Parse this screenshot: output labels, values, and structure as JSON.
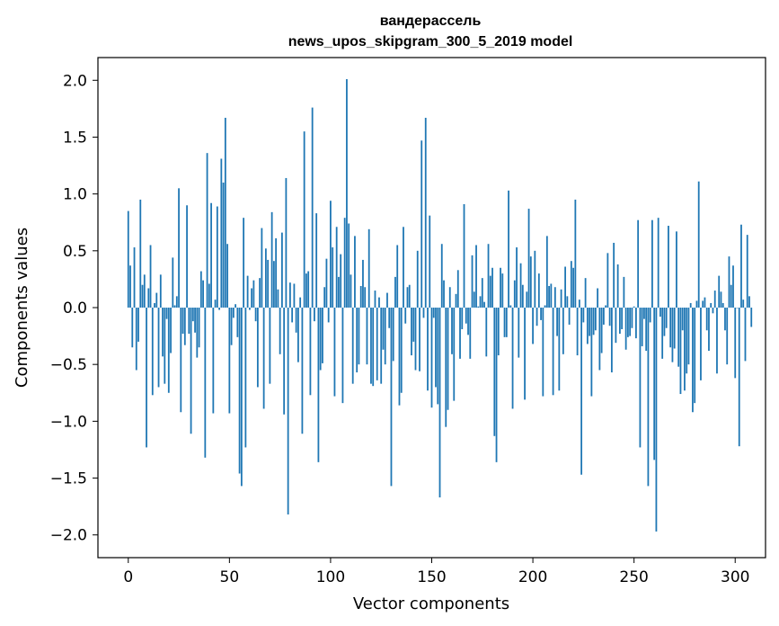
{
  "chart_data": {
    "type": "bar",
    "title_line1": "вандерассель",
    "title_line2": "news_upos_skipgram_300_5_2019 model",
    "xlabel": "Vector components",
    "ylabel": "Components values",
    "xlim": [
      -15,
      315
    ],
    "ylim": [
      -2.2,
      2.2
    ],
    "x_ticks": [
      0,
      50,
      100,
      150,
      200,
      250,
      300
    ],
    "y_ticks": [
      2.0,
      1.5,
      1.0,
      0.5,
      0.0,
      -0.5,
      -1.0,
      -1.5,
      -2.0
    ],
    "x_tick_labels": [
      "0",
      "50",
      "100",
      "150",
      "200",
      "250",
      "300"
    ],
    "y_tick_labels": [
      "2.0",
      "1.5",
      "1.0",
      "0.5",
      "0.0",
      "−0.5",
      "−1.0",
      "−1.5",
      "−2.0"
    ],
    "bar_color": "#1f77b4",
    "values": [
      0.85,
      0.37,
      -0.35,
      0.53,
      -0.55,
      -0.3,
      0.95,
      0.2,
      0.29,
      -1.23,
      0.17,
      0.55,
      -0.77,
      0.04,
      0.13,
      -0.7,
      0.29,
      -0.43,
      -0.67,
      -0.1,
      -0.75,
      -0.4,
      0.44,
      0.02,
      0.1,
      1.05,
      -0.92,
      -0.23,
      -0.33,
      0.9,
      -0.23,
      -1.11,
      -0.12,
      -0.22,
      -0.44,
      -0.35,
      0.32,
      0.24,
      -1.32,
      1.36,
      0.21,
      0.92,
      -0.93,
      0.07,
      0.89,
      -0.02,
      1.31,
      1.1,
      1.67,
      0.56,
      -0.93,
      -0.33,
      -0.09,
      0.03,
      -0.26,
      -1.46,
      -1.57,
      0.79,
      -1.23,
      0.28,
      -0.02,
      0.17,
      0.24,
      -0.12,
      -0.7,
      0.26,
      0.7,
      -0.89,
      0.52,
      0.42,
      -0.67,
      0.84,
      0.41,
      0.61,
      0.16,
      -0.41,
      0.66,
      -0.94,
      1.14,
      -1.82,
      0.22,
      -0.13,
      0.21,
      -0.22,
      -0.48,
      0.09,
      -1.11,
      1.55,
      0.3,
      0.32,
      -0.77,
      1.76,
      -0.12,
      0.83,
      -1.36,
      -0.55,
      -0.49,
      0.18,
      0.43,
      -0.13,
      0.94,
      0.53,
      -0.78,
      0.71,
      0.27,
      0.47,
      -0.84,
      0.79,
      2.01,
      0.74,
      0.29,
      -0.67,
      0.63,
      -0.57,
      -0.5,
      0.19,
      0.42,
      0.18,
      -0.5,
      0.69,
      -0.67,
      -0.69,
      0.15,
      -0.64,
      0.09,
      -0.67,
      -0.37,
      -0.5,
      0.13,
      -0.18,
      -1.57,
      -0.47,
      0.27,
      0.55,
      -0.86,
      -0.75,
      0.71,
      -0.14,
      0.18,
      0.2,
      -0.42,
      -0.3,
      -0.55,
      0.5,
      -0.56,
      1.47,
      -0.09,
      1.67,
      -0.73,
      0.81,
      -0.88,
      -0.09,
      -0.7,
      -0.85,
      -1.67,
      0.56,
      0.24,
      -1.05,
      -0.9,
      0.18,
      -0.41,
      -0.82,
      0.12,
      0.33,
      -0.45,
      -0.19,
      0.91,
      -0.14,
      -0.24,
      -0.45,
      0.46,
      0.14,
      0.55,
      0.01,
      0.1,
      0.26,
      0.05,
      -0.43,
      0.56,
      0.28,
      0.35,
      -1.13,
      -1.36,
      -0.42,
      0.35,
      0.3,
      -0.26,
      -0.26,
      1.03,
      0.02,
      -0.89,
      0.24,
      0.53,
      -0.44,
      0.39,
      0.2,
      -0.81,
      0.14,
      0.87,
      0.45,
      -0.32,
      0.5,
      -0.16,
      0.3,
      -0.11,
      -0.78,
      0.02,
      0.63,
      0.19,
      0.21,
      -0.77,
      0.18,
      -0.25,
      -0.73,
      0.16,
      -0.41,
      0.36,
      0.1,
      -0.15,
      0.41,
      0.35,
      0.95,
      -0.42,
      0.07,
      -1.47,
      -0.13,
      0.26,
      -0.32,
      -0.25,
      -0.78,
      -0.24,
      -0.2,
      0.17,
      -0.55,
      -0.4,
      -0.15,
      0.02,
      0.48,
      -0.16,
      -0.57,
      0.57,
      -0.31,
      0.38,
      -0.23,
      -0.19,
      0.27,
      -0.37,
      -0.26,
      -0.25,
      -0.18,
      0.01,
      -0.27,
      0.77,
      -1.23,
      -0.34,
      -0.1,
      -0.38,
      -1.57,
      -0.13,
      0.77,
      -1.34,
      -1.97,
      0.79,
      -0.08,
      -0.45,
      -0.25,
      -0.18,
      0.72,
      -0.35,
      -0.48,
      -0.36,
      0.67,
      -0.52,
      -0.76,
      -0.2,
      -0.73,
      -0.58,
      -0.5,
      0.04,
      -0.92,
      -0.84,
      0.06,
      1.11,
      -0.64,
      0.06,
      0.09,
      -0.2,
      -0.38,
      0.04,
      -0.05,
      0.15,
      -0.58,
      0.28,
      0.14,
      0.04,
      -0.2,
      -0.5,
      0.45,
      0.2,
      0.37,
      -0.62,
      0.0,
      -1.22,
      0.73,
      0.07,
      -0.47,
      0.64,
      0.1,
      -0.17
    ]
  }
}
